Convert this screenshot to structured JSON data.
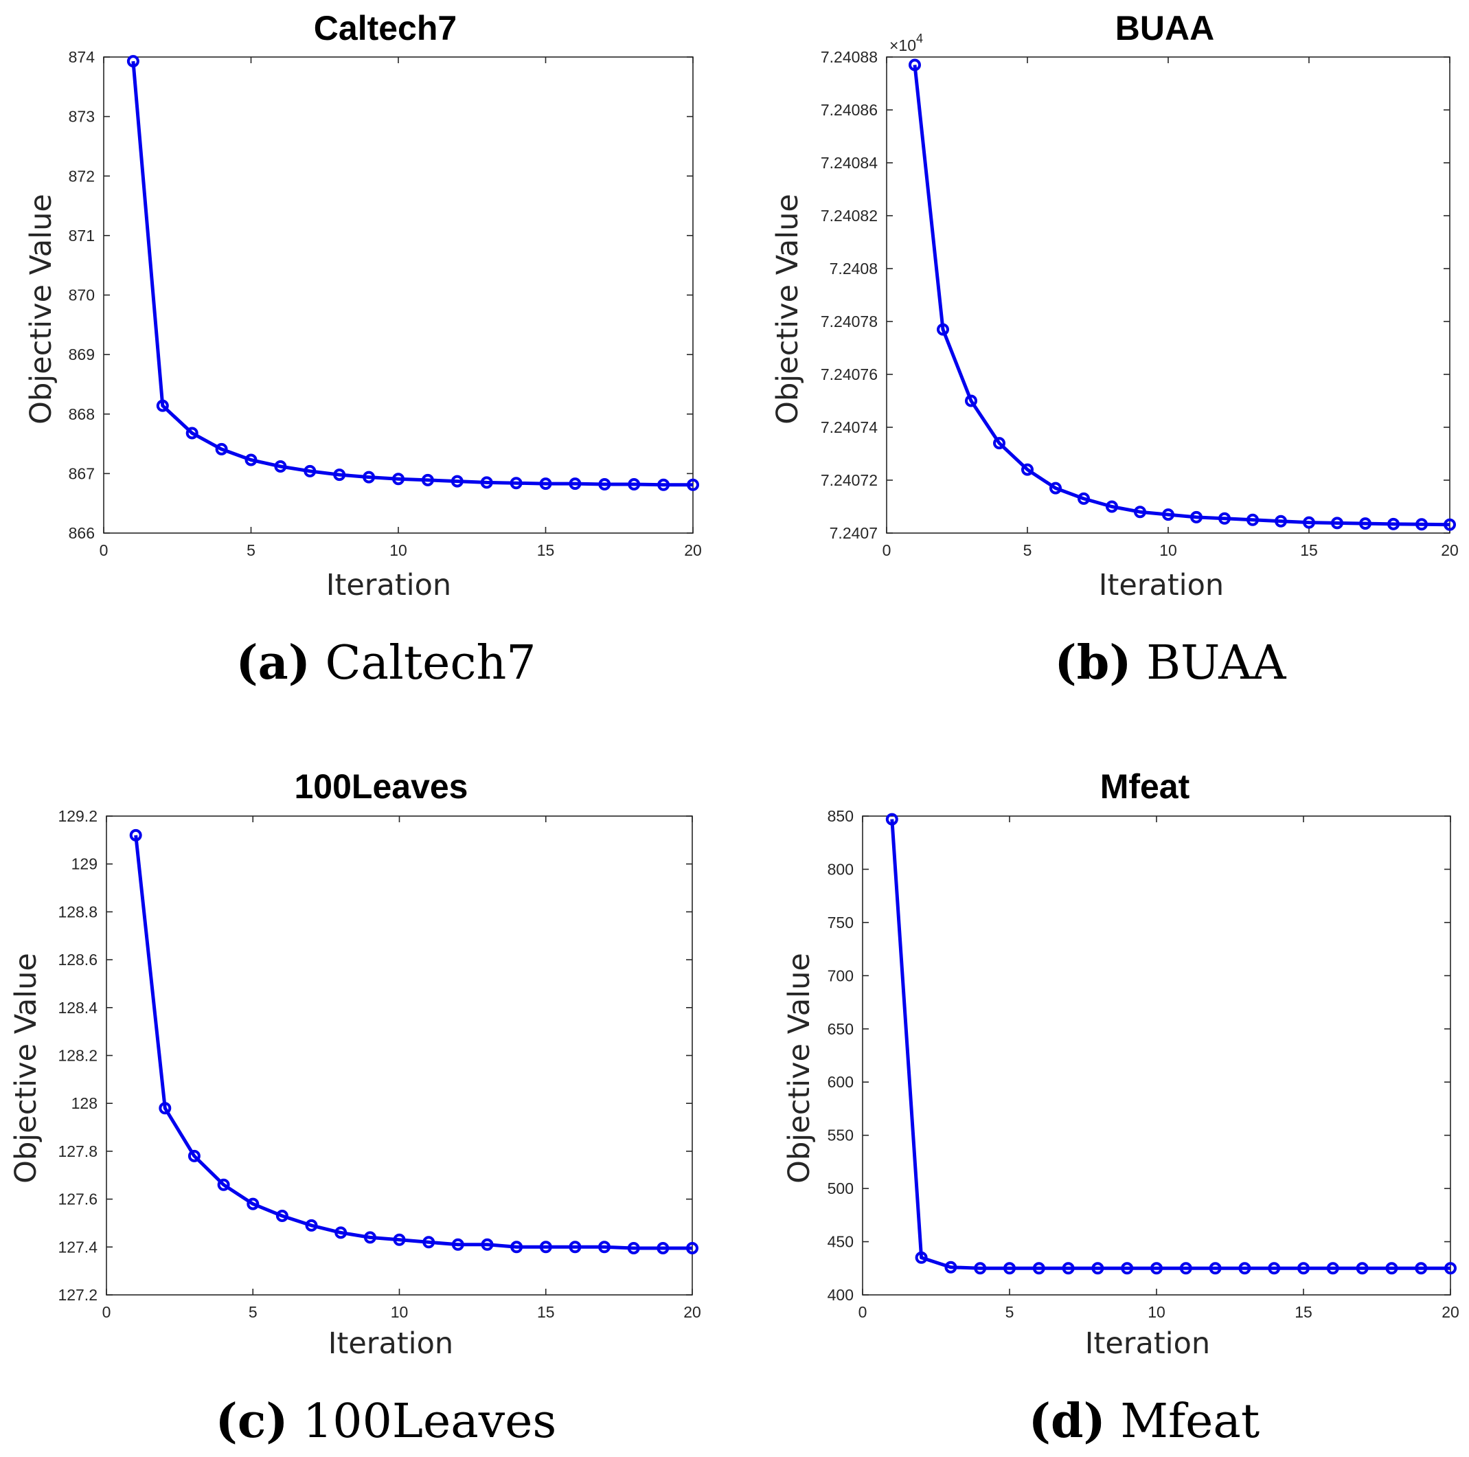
{
  "chart_data": [
    {
      "type": "line",
      "title": "Caltech7",
      "xlabel": "Iteration",
      "ylabel": "Objective Value",
      "xlim": [
        0,
        20
      ],
      "ylim": [
        866,
        874
      ],
      "xticks": [
        0,
        5,
        10,
        15,
        20
      ],
      "yticks": [
        866,
        867,
        868,
        869,
        870,
        871,
        872,
        873,
        874
      ],
      "ytick_labels": [
        "866",
        "867",
        "868",
        "869",
        "870",
        "871",
        "872",
        "873",
        "874"
      ],
      "x": [
        1,
        2,
        3,
        4,
        5,
        6,
        7,
        8,
        9,
        10,
        11,
        12,
        13,
        14,
        15,
        16,
        17,
        18,
        19,
        20
      ],
      "series": [
        {
          "name": "Objective",
          "color": "#0000ee",
          "marker": "circle",
          "values": [
            873.93,
            868.14,
            867.68,
            867.41,
            867.23,
            867.12,
            867.04,
            866.98,
            866.94,
            866.91,
            866.89,
            866.87,
            866.85,
            866.84,
            866.83,
            866.83,
            866.82,
            866.82,
            866.81,
            866.81
          ]
        }
      ],
      "caption_letter": "(a)",
      "caption_text": "Caltech7"
    },
    {
      "type": "line",
      "title": "BUAA",
      "xlabel": "Iteration",
      "ylabel": "Objective Value",
      "xlim": [
        0,
        20
      ],
      "ylim": [
        7.2407,
        7.24088
      ],
      "xticks": [
        0,
        5,
        10,
        15,
        20
      ],
      "yticks": [
        7.2407,
        7.24072,
        7.24074,
        7.24076,
        7.24078,
        7.2408,
        7.24082,
        7.24084,
        7.24086,
        7.24088
      ],
      "ytick_labels": [
        "7.2407",
        "7.24072",
        "7.24074",
        "7.24076",
        "7.24078",
        "7.2408",
        "7.24082",
        "7.24084",
        "7.24086",
        "7.24088"
      ],
      "exponent_label": "×10",
      "exponent_power": "4",
      "x": [
        1,
        2,
        3,
        4,
        5,
        6,
        7,
        8,
        9,
        10,
        11,
        12,
        13,
        14,
        15,
        16,
        17,
        18,
        19,
        20
      ],
      "series": [
        {
          "name": "Objective",
          "color": "#0000ee",
          "marker": "circle",
          "values": [
            7.240877,
            7.240777,
            7.24075,
            7.240734,
            7.240724,
            7.240717,
            7.240713,
            7.24071,
            7.240708,
            7.240707,
            7.240706,
            7.2407055,
            7.240705,
            7.2407045,
            7.240704,
            7.2407038,
            7.2407036,
            7.2407034,
            7.2407033,
            7.2407032
          ]
        }
      ],
      "caption_letter": "(b)",
      "caption_text": "BUAA"
    },
    {
      "type": "line",
      "title": "100Leaves",
      "xlabel": "Iteration",
      "ylabel": "Objective Value",
      "xlim": [
        0,
        20
      ],
      "ylim": [
        127.2,
        129.2
      ],
      "xticks": [
        0,
        5,
        10,
        15,
        20
      ],
      "yticks": [
        127.2,
        127.4,
        127.6,
        127.8,
        128,
        128.2,
        128.4,
        128.6,
        128.8,
        129,
        129.2
      ],
      "ytick_labels": [
        "127.2",
        "127.4",
        "127.6",
        "127.8",
        "128",
        "128.2",
        "128.4",
        "128.6",
        "128.8",
        "129",
        "129.2"
      ],
      "x": [
        1,
        2,
        3,
        4,
        5,
        6,
        7,
        8,
        9,
        10,
        11,
        12,
        13,
        14,
        15,
        16,
        17,
        18,
        19,
        20
      ],
      "series": [
        {
          "name": "Objective",
          "color": "#0000ee",
          "marker": "circle",
          "values": [
            129.12,
            127.98,
            127.78,
            127.66,
            127.58,
            127.53,
            127.49,
            127.46,
            127.44,
            127.43,
            127.42,
            127.41,
            127.41,
            127.4,
            127.4,
            127.4,
            127.4,
            127.395,
            127.395,
            127.395
          ]
        }
      ],
      "caption_letter": "(c)",
      "caption_text": "100Leaves"
    },
    {
      "type": "line",
      "title": "Mfeat",
      "xlabel": "Iteration",
      "ylabel": "Objective Value",
      "xlim": [
        0,
        20
      ],
      "ylim": [
        400,
        850
      ],
      "xticks": [
        0,
        5,
        10,
        15,
        20
      ],
      "yticks": [
        400,
        450,
        500,
        550,
        600,
        650,
        700,
        750,
        800,
        850
      ],
      "ytick_labels": [
        "400",
        "450",
        "500",
        "550",
        "600",
        "650",
        "700",
        "750",
        "800",
        "850"
      ],
      "x": [
        1,
        2,
        3,
        4,
        5,
        6,
        7,
        8,
        9,
        10,
        11,
        12,
        13,
        14,
        15,
        16,
        17,
        18,
        19,
        20
      ],
      "series": [
        {
          "name": "Objective",
          "color": "#0000ee",
          "marker": "circle",
          "values": [
            847,
            435,
            426,
            425,
            425,
            425,
            425,
            425,
            425,
            425,
            425,
            425,
            425,
            425,
            425,
            425,
            425,
            425,
            425,
            425
          ]
        }
      ],
      "caption_letter": "(d)",
      "caption_text": "Mfeat"
    }
  ]
}
